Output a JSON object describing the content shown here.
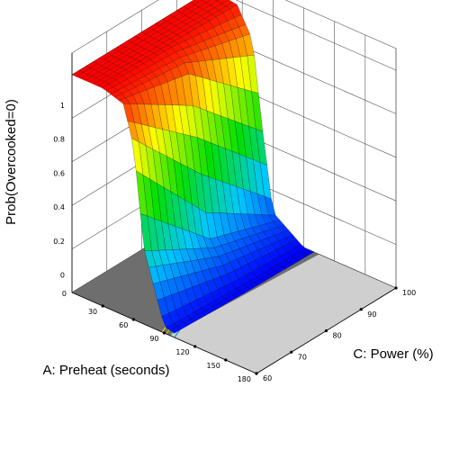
{
  "chart_data": {
    "type": "surface3d",
    "zlabel": "Prob(Overcooked=0)",
    "xlabel": "A: Preheat (seconds)",
    "ylabel": "C: Power (%)",
    "x_ticks": [
      "30",
      "60",
      "90",
      "120",
      "150",
      "180"
    ],
    "y_ticks": [
      "60",
      "70",
      "80",
      "90",
      "100"
    ],
    "z_ticks": [
      "0",
      "0.2",
      "0.4",
      "0.6",
      "0.8",
      "1"
    ],
    "floor_tick": "0",
    "x_range": [
      0,
      180
    ],
    "y_range": [
      60,
      100
    ],
    "zlim": [
      0,
      1
    ],
    "surface_description": "Probability equals 1 for low preheat and drops steeply to about 0 between 30 and 90 seconds; the transition shifts to shorter preheat at higher power.",
    "surface_samples": [
      {
        "power": 60,
        "preheat": [
          0,
          30,
          50,
          60,
          70,
          90,
          120
        ],
        "prob": [
          1.0,
          1.0,
          0.97,
          0.8,
          0.35,
          0.03,
          0.0
        ]
      },
      {
        "power": 80,
        "preheat": [
          0,
          30,
          45,
          55,
          65,
          90,
          120
        ],
        "prob": [
          1.0,
          0.99,
          0.93,
          0.6,
          0.2,
          0.01,
          0.0
        ]
      },
      {
        "power": 100,
        "preheat": [
          0,
          25,
          40,
          50,
          60,
          90,
          120
        ],
        "prob": [
          1.0,
          0.98,
          0.85,
          0.45,
          0.1,
          0.0,
          0.0
        ]
      }
    ],
    "contour_colors": [
      "#dddd00",
      "#e8a020",
      "#30c060",
      "#2090e0"
    ],
    "colormap": [
      "#0000ff",
      "#00c8ff",
      "#00e000",
      "#ffff00",
      "#ff0000"
    ],
    "grid": true
  }
}
